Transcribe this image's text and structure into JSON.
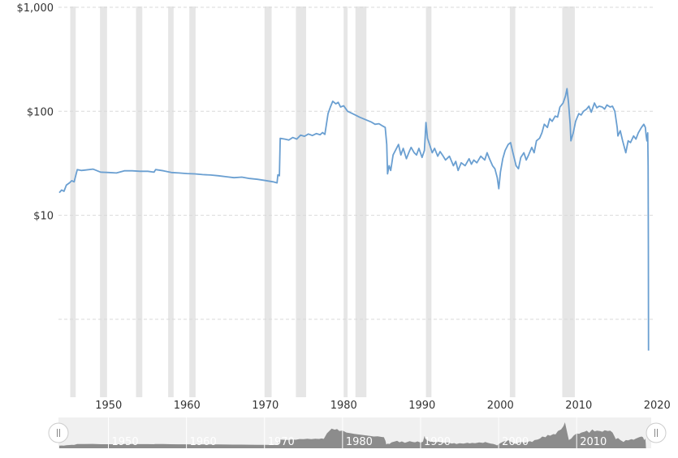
{
  "colors": {
    "line": "#6a9fd1",
    "recession": "#e6e6e6",
    "grid": "#d9d9d9",
    "navigator_bg": "#f0f0f0",
    "navigator_area": "#8c8c8c",
    "text": "#333333"
  },
  "chart_data": {
    "type": "line",
    "title": "",
    "xlabel": "",
    "ylabel": "",
    "y_scale": "log",
    "ylim": [
      1,
      1000
    ],
    "xlim": [
      1943.6,
      2018.9
    ],
    "grid": "horizontal-dashed",
    "y_ticks": [
      {
        "value": 1000,
        "label": "$1,000"
      },
      {
        "value": 100,
        "label": "$100"
      },
      {
        "value": 10,
        "label": "$10"
      },
      {
        "value": 1,
        "label": ""
      }
    ],
    "x_ticks": [
      {
        "value": 1950,
        "label": "1950"
      },
      {
        "value": 1960,
        "label": "1960"
      },
      {
        "value": 1970,
        "label": "1970"
      },
      {
        "value": 1980,
        "label": "1980"
      },
      {
        "value": 1990,
        "label": "1990"
      },
      {
        "value": 2000,
        "label": "2000"
      },
      {
        "value": 2010,
        "label": "2010"
      },
      {
        "value": 2020,
        "label": "2020"
      }
    ],
    "recessions": [
      [
        1945.1,
        1945.8
      ],
      [
        1948.9,
        1949.8
      ],
      [
        1953.5,
        1954.3
      ],
      [
        1957.6,
        1958.3
      ],
      [
        1960.3,
        1961.1
      ],
      [
        1969.9,
        1970.8
      ],
      [
        1973.9,
        1975.2
      ],
      [
        1980.0,
        1980.5
      ],
      [
        1981.5,
        1982.9
      ],
      [
        1990.5,
        1991.2
      ],
      [
        2001.2,
        2001.9
      ],
      [
        2007.9,
        2009.5
      ]
    ],
    "series": [
      {
        "values": [
          [
            1943.7,
            16.5
          ],
          [
            1944.0,
            17.5
          ],
          [
            1944.3,
            17.0
          ],
          [
            1944.6,
            19.5
          ],
          [
            1945.0,
            20.5
          ],
          [
            1945.3,
            21.5
          ],
          [
            1945.6,
            21.0
          ],
          [
            1946.0,
            27.5
          ],
          [
            1946.5,
            27.0
          ],
          [
            1947.0,
            27.2
          ],
          [
            1948.0,
            27.8
          ],
          [
            1949.0,
            26.0
          ],
          [
            1950.0,
            25.8
          ],
          [
            1951.0,
            25.5
          ],
          [
            1952.0,
            26.8
          ],
          [
            1953.0,
            26.8
          ],
          [
            1954.0,
            26.5
          ],
          [
            1955.0,
            26.5
          ],
          [
            1955.8,
            26.0
          ],
          [
            1956.0,
            27.5
          ],
          [
            1957.0,
            26.8
          ],
          [
            1958.0,
            25.8
          ],
          [
            1959.0,
            25.5
          ],
          [
            1960.0,
            25.2
          ],
          [
            1961.0,
            25.0
          ],
          [
            1962.0,
            24.6
          ],
          [
            1963.0,
            24.4
          ],
          [
            1964.0,
            24.0
          ],
          [
            1965.0,
            23.5
          ],
          [
            1966.0,
            23.0
          ],
          [
            1967.0,
            23.3
          ],
          [
            1968.0,
            22.6
          ],
          [
            1969.0,
            22.2
          ],
          [
            1970.0,
            21.6
          ],
          [
            1971.0,
            21.0
          ],
          [
            1971.5,
            20.5
          ],
          [
            1971.6,
            24.5
          ],
          [
            1971.8,
            24.0
          ],
          [
            1971.9,
            55.0
          ],
          [
            1972.5,
            54.0
          ],
          [
            1973.0,
            53.0
          ],
          [
            1973.5,
            56.0
          ],
          [
            1974.0,
            54.0
          ],
          [
            1974.5,
            59.0
          ],
          [
            1975.0,
            57.5
          ],
          [
            1975.5,
            60.5
          ],
          [
            1976.0,
            58.5
          ],
          [
            1976.5,
            61.0
          ],
          [
            1977.0,
            59.5
          ],
          [
            1977.3,
            62.5
          ],
          [
            1977.6,
            60.0
          ],
          [
            1978.0,
            95.0
          ],
          [
            1978.3,
            110.0
          ],
          [
            1978.6,
            125.0
          ],
          [
            1979.0,
            118.0
          ],
          [
            1979.3,
            122.0
          ],
          [
            1979.6,
            110.0
          ],
          [
            1980.0,
            113.0
          ],
          [
            1980.5,
            100.0
          ],
          [
            1981.0,
            96.0
          ],
          [
            1981.5,
            92.0
          ],
          [
            1982.0,
            88.0
          ],
          [
            1982.5,
            85.0
          ],
          [
            1983.0,
            82.0
          ],
          [
            1983.5,
            79.0
          ],
          [
            1984.0,
            75.0
          ],
          [
            1984.5,
            76.0
          ],
          [
            1985.0,
            72.0
          ],
          [
            1985.3,
            70.0
          ],
          [
            1985.5,
            48.0
          ],
          [
            1985.6,
            25.0
          ],
          [
            1985.8,
            30.0
          ],
          [
            1986.0,
            27.0
          ],
          [
            1986.3,
            38.0
          ],
          [
            1986.6,
            42.0
          ],
          [
            1987.0,
            48.0
          ],
          [
            1987.3,
            38.0
          ],
          [
            1987.6,
            44.0
          ],
          [
            1988.0,
            35.0
          ],
          [
            1988.3,
            40.0
          ],
          [
            1988.6,
            45.0
          ],
          [
            1989.0,
            40.0
          ],
          [
            1989.3,
            38.0
          ],
          [
            1989.6,
            44.0
          ],
          [
            1990.0,
            36.0
          ],
          [
            1990.3,
            42.0
          ],
          [
            1990.5,
            78.0
          ],
          [
            1990.7,
            55.0
          ],
          [
            1991.0,
            47.0
          ],
          [
            1991.3,
            40.0
          ],
          [
            1991.6,
            44.0
          ],
          [
            1992.0,
            37.0
          ],
          [
            1992.3,
            41.0
          ],
          [
            1992.6,
            38.0
          ],
          [
            1993.0,
            34.0
          ],
          [
            1993.5,
            37.0
          ],
          [
            1994.0,
            30.0
          ],
          [
            1994.3,
            33.0
          ],
          [
            1994.6,
            27.0
          ],
          [
            1995.0,
            32.0
          ],
          [
            1995.5,
            30.0
          ],
          [
            1996.0,
            35.0
          ],
          [
            1996.3,
            31.0
          ],
          [
            1996.6,
            34.0
          ],
          [
            1997.0,
            32.0
          ],
          [
            1997.5,
            37.0
          ],
          [
            1998.0,
            34.0
          ],
          [
            1998.3,
            40.0
          ],
          [
            1998.6,
            35.0
          ],
          [
            1999.0,
            30.0
          ],
          [
            1999.3,
            28.0
          ],
          [
            1999.6,
            23.0
          ],
          [
            1999.8,
            18.0
          ],
          [
            2000.0,
            26.0
          ],
          [
            2000.3,
            35.0
          ],
          [
            2000.6,
            42.0
          ],
          [
            2001.0,
            48.0
          ],
          [
            2001.3,
            50.0
          ],
          [
            2001.6,
            40.0
          ],
          [
            2002.0,
            30.0
          ],
          [
            2002.3,
            28.0
          ],
          [
            2002.6,
            36.0
          ],
          [
            2003.0,
            40.0
          ],
          [
            2003.3,
            34.0
          ],
          [
            2003.6,
            38.0
          ],
          [
            2004.0,
            45.0
          ],
          [
            2004.3,
            40.0
          ],
          [
            2004.6,
            52.0
          ],
          [
            2005.0,
            55.0
          ],
          [
            2005.3,
            62.0
          ],
          [
            2005.6,
            75.0
          ],
          [
            2006.0,
            70.0
          ],
          [
            2006.3,
            85.0
          ],
          [
            2006.6,
            80.0
          ],
          [
            2007.0,
            90.0
          ],
          [
            2007.3,
            88.0
          ],
          [
            2007.6,
            110.0
          ],
          [
            2008.0,
            120.0
          ],
          [
            2008.3,
            140.0
          ],
          [
            2008.5,
            165.0
          ],
          [
            2008.7,
            120.0
          ],
          [
            2008.9,
            75.0
          ],
          [
            2009.0,
            52.0
          ],
          [
            2009.3,
            62.0
          ],
          [
            2009.6,
            80.0
          ],
          [
            2010.0,
            95.0
          ],
          [
            2010.3,
            92.0
          ],
          [
            2010.6,
            100.0
          ],
          [
            2011.0,
            105.0
          ],
          [
            2011.3,
            112.0
          ],
          [
            2011.6,
            98.0
          ],
          [
            2012.0,
            120.0
          ],
          [
            2012.3,
            108.0
          ],
          [
            2012.6,
            112.0
          ],
          [
            2013.0,
            110.0
          ],
          [
            2013.3,
            105.0
          ],
          [
            2013.6,
            115.0
          ],
          [
            2014.0,
            110.0
          ],
          [
            2014.3,
            112.0
          ],
          [
            2014.6,
            100.0
          ],
          [
            2014.9,
            70.0
          ],
          [
            2015.0,
            58.0
          ],
          [
            2015.3,
            65.0
          ],
          [
            2015.6,
            52.0
          ],
          [
            2016.0,
            40.0
          ],
          [
            2016.3,
            52.0
          ],
          [
            2016.6,
            50.0
          ],
          [
            2017.0,
            58.0
          ],
          [
            2017.3,
            54.0
          ],
          [
            2017.6,
            62.0
          ],
          [
            2018.0,
            70.0
          ],
          [
            2018.3,
            75.0
          ],
          [
            2018.5,
            70.0
          ],
          [
            2018.6,
            58.0
          ],
          [
            2018.7,
            52.0
          ],
          [
            2018.8,
            62.0
          ],
          [
            2018.85,
            30.0
          ],
          [
            2018.88,
            5.0
          ],
          [
            2018.9,
            0.5
          ]
        ]
      }
    ],
    "navigator": {
      "x_ticks": [
        "1950",
        "1960",
        "1970",
        "1980",
        "1990",
        "2000",
        "2010"
      ]
    }
  }
}
